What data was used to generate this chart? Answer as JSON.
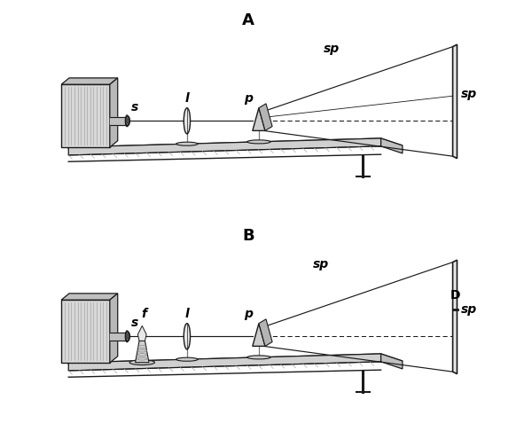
{
  "background_color": "#ffffff",
  "line_color": "#1a1a1a",
  "fig_width": 6.0,
  "fig_height": 4.86,
  "dpi": 100,
  "label_A": "A",
  "label_B": "B",
  "label_s": "s",
  "label_l": "l",
  "label_p": "p",
  "label_sp_top": "sp",
  "label_sp_right": "sp",
  "label_f": "f",
  "label_D": "D",
  "gray1": "#c8c8c8",
  "gray2": "#a8a8a8",
  "gray3": "#888888",
  "gray4": "#666666",
  "gray5": "#444444",
  "hatch_color": "#999999"
}
